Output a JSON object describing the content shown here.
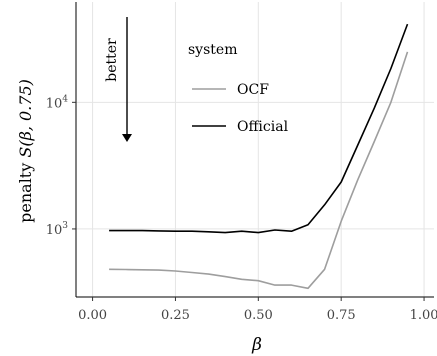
{
  "chart_data": {
    "type": "line",
    "title": "",
    "xlabel": "β",
    "ylabel_prefix": "penalty ",
    "ylabel_math": "S(β, 0.75)",
    "x_scale": "linear",
    "y_scale": "log",
    "xlim": [
      -0.05,
      1.03
    ],
    "ylim": [
      290,
      62000
    ],
    "x_ticks": [
      0.0,
      0.25,
      0.5,
      0.75,
      1.0
    ],
    "x_tick_labels": [
      "0.00",
      "0.25",
      "0.50",
      "0.75",
      "1.00"
    ],
    "y_ticks": [
      1000,
      10000
    ],
    "y_tick_labels": [
      {
        "base": "10",
        "exp": "3"
      },
      {
        "base": "10",
        "exp": "4"
      }
    ],
    "grid": true,
    "legend": {
      "title": "system",
      "position": "top-left inside"
    },
    "annotation": {
      "text": "better",
      "direction": "down"
    },
    "series": [
      {
        "name": "OCF",
        "color": "#9e9e9e",
        "x": [
          0.05,
          0.1,
          0.15,
          0.2,
          0.25,
          0.3,
          0.35,
          0.4,
          0.45,
          0.5,
          0.55,
          0.6,
          0.65,
          0.7,
          0.75,
          0.8,
          0.85,
          0.9,
          0.95
        ],
        "y": [
          480,
          478,
          476,
          473,
          465,
          453,
          440,
          420,
          400,
          390,
          360,
          360,
          340,
          480,
          1150,
          2450,
          4900,
          10000,
          25000
        ]
      },
      {
        "name": "Official",
        "color": "#000000",
        "x": [
          0.05,
          0.1,
          0.15,
          0.2,
          0.25,
          0.3,
          0.35,
          0.4,
          0.45,
          0.5,
          0.55,
          0.6,
          0.65,
          0.7,
          0.75,
          0.8,
          0.85,
          0.9,
          0.95
        ],
        "y": [
          970,
          970,
          970,
          965,
          960,
          960,
          950,
          935,
          960,
          935,
          980,
          960,
          1080,
          1550,
          2350,
          4600,
          9000,
          18500,
          41500
        ]
      }
    ]
  }
}
